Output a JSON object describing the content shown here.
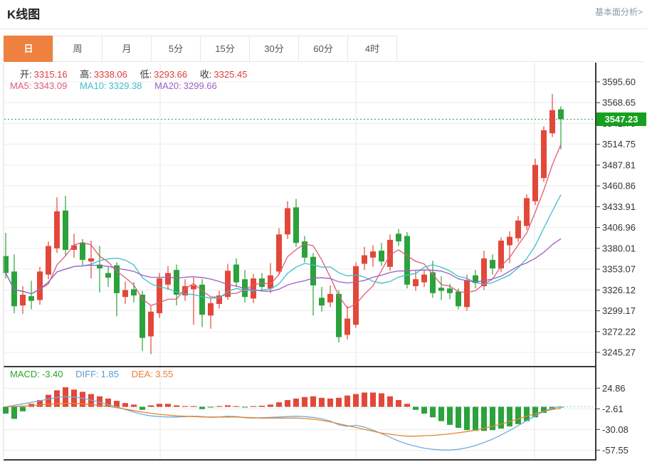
{
  "header": {
    "title": "K线图",
    "analysis_link": "基本面分析>"
  },
  "tabs": {
    "items": [
      {
        "label": "日",
        "active": true
      },
      {
        "label": "周",
        "active": false
      },
      {
        "label": "月",
        "active": false
      },
      {
        "label": "5分",
        "active": false
      },
      {
        "label": "15分",
        "active": false
      },
      {
        "label": "30分",
        "active": false
      },
      {
        "label": "60分",
        "active": false
      },
      {
        "label": "4时",
        "active": false
      }
    ],
    "active_bg": "#ee8040"
  },
  "indicators": {
    "ohlc": [
      {
        "label": "开:",
        "value": "3315.16"
      },
      {
        "label": "高:",
        "value": "3338.06"
      },
      {
        "label": "低:",
        "value": "3293.66"
      },
      {
        "label": "收:",
        "value": "3325.45"
      }
    ],
    "ma": [
      {
        "label": "MA5:",
        "value": "3343.09",
        "color": "#e05a78"
      },
      {
        "label": "MA10:",
        "value": "3329.38",
        "color": "#3bbfcc"
      },
      {
        "label": "MA20:",
        "value": "3299.66",
        "color": "#9c5fc0"
      }
    ],
    "macd": [
      {
        "label": "MACD:",
        "value": "-3.40",
        "color": "#2aa42c"
      },
      {
        "label": "DIFF:",
        "value": "1.85",
        "color": "#5b9bd5"
      },
      {
        "label": "DEA:",
        "value": "3.55",
        "color": "#e8823a"
      }
    ]
  },
  "price_label": {
    "text": "3547.23",
    "value": 3547.23,
    "bg": "#15a01f"
  },
  "colors": {
    "up": "#e2483a",
    "down": "#2ba23c",
    "ma5": "#e05a78",
    "ma10": "#3bbfcc",
    "ma20": "#9c5fc0",
    "diff": "#74aadc",
    "dea": "#e2862c",
    "grid": "#ececec",
    "vgrid": "#e6e6e6",
    "frame": "#3a3a3a",
    "left_border": "#d8d8d8",
    "tick_text": "#333333",
    "zero_dash": "#8fd0e0",
    "current_line": "#2aa53c",
    "value_red": "#e23b3b"
  },
  "chart_data": {
    "type": "candlestick",
    "title": "K线图",
    "legend": [
      "MA5",
      "MA10",
      "MA20",
      "MACD",
      "DIFF",
      "DEA"
    ],
    "price_ticks": [
      3595.6,
      3568.65,
      3541.7,
      3514.75,
      3487.81,
      3460.86,
      3433.91,
      3406.96,
      3380.01,
      3353.07,
      3326.12,
      3299.17,
      3272.22,
      3245.27
    ],
    "price_range": [
      3245.27,
      3595.6
    ],
    "current_price": 3547.23,
    "macd_ticks": [
      24.86,
      -2.61,
      -30.08,
      -57.55
    ],
    "time_gridlines_x": [
      225,
      500,
      751
    ],
    "candles": [
      [
        3370,
        3400,
        3341,
        3348
      ],
      [
        3350,
        3372,
        3296,
        3305
      ],
      [
        3306,
        3331,
        3295,
        3320
      ],
      [
        3318,
        3338,
        3301,
        3312
      ],
      [
        3313,
        3356,
        3307,
        3350
      ],
      [
        3346,
        3389,
        3340,
        3383
      ],
      [
        3380,
        3446,
        3374,
        3428
      ],
      [
        3429,
        3448,
        3371,
        3378
      ],
      [
        3378,
        3399,
        3368,
        3384
      ],
      [
        3387,
        3392,
        3358,
        3365
      ],
      [
        3363,
        3390,
        3341,
        3367
      ],
      [
        3359,
        3383,
        3323,
        3354
      ],
      [
        3348,
        3356,
        3330,
        3342
      ],
      [
        3358,
        3362,
        3292,
        3322
      ],
      [
        3317,
        3337,
        3308,
        3326
      ],
      [
        3327,
        3336,
        3310,
        3319
      ],
      [
        3320,
        3325,
        3247,
        3264
      ],
      [
        3266,
        3305,
        3243,
        3298
      ],
      [
        3296,
        3348,
        3290,
        3341
      ],
      [
        3333,
        3357,
        3326,
        3348
      ],
      [
        3352,
        3359,
        3306,
        3320
      ],
      [
        3319,
        3340,
        3312,
        3331
      ],
      [
        3327,
        3342,
        3281,
        3332
      ],
      [
        3333,
        3340,
        3278,
        3294
      ],
      [
        3293,
        3315,
        3276,
        3309
      ],
      [
        3308,
        3325,
        3302,
        3319
      ],
      [
        3317,
        3360,
        3313,
        3351
      ],
      [
        3359,
        3367,
        3330,
        3336
      ],
      [
        3340,
        3352,
        3310,
        3317
      ],
      [
        3315,
        3347,
        3309,
        3341
      ],
      [
        3341,
        3348,
        3324,
        3330
      ],
      [
        3328,
        3361,
        3322,
        3345
      ],
      [
        3350,
        3406,
        3346,
        3398
      ],
      [
        3398,
        3441,
        3392,
        3432
      ],
      [
        3433,
        3444,
        3382,
        3387
      ],
      [
        3389,
        3396,
        3362,
        3368
      ],
      [
        3369,
        3374,
        3293,
        3332
      ],
      [
        3316,
        3330,
        3298,
        3306
      ],
      [
        3310,
        3332,
        3304,
        3321
      ],
      [
        3321,
        3326,
        3258,
        3265
      ],
      [
        3268,
        3305,
        3262,
        3289
      ],
      [
        3281,
        3362,
        3277,
        3357
      ],
      [
        3360,
        3382,
        3352,
        3371
      ],
      [
        3368,
        3384,
        3356,
        3376
      ],
      [
        3377,
        3387,
        3357,
        3363
      ],
      [
        3356,
        3398,
        3351,
        3391
      ],
      [
        3399,
        3405,
        3383,
        3389
      ],
      [
        3396,
        3401,
        3328,
        3333
      ],
      [
        3331,
        3351,
        3325,
        3340
      ],
      [
        3336,
        3352,
        3330,
        3346
      ],
      [
        3349,
        3364,
        3316,
        3322
      ],
      [
        3329,
        3344,
        3313,
        3325
      ],
      [
        3328,
        3334,
        3314,
        3322
      ],
      [
        3324,
        3328,
        3301,
        3305
      ],
      [
        3304,
        3346,
        3299,
        3339
      ],
      [
        3345,
        3352,
        3328,
        3335
      ],
      [
        3331,
        3377,
        3326,
        3367
      ],
      [
        3365,
        3372,
        3346,
        3354
      ],
      [
        3354,
        3394,
        3349,
        3390
      ],
      [
        3384,
        3402,
        3361,
        3395
      ],
      [
        3393,
        3422,
        3388,
        3416
      ],
      [
        3409,
        3450,
        3404,
        3445
      ],
      [
        3441,
        3496,
        3436,
        3488
      ],
      [
        3471,
        3538,
        3466,
        3533
      ],
      [
        3529,
        3580,
        3524,
        3559
      ],
      [
        3560,
        3564,
        3508,
        3547.23
      ]
    ],
    "ma_periods": [
      5,
      10,
      20
    ],
    "macd": {
      "hist": [
        -9,
        -16,
        -6,
        4,
        9,
        16,
        22,
        26,
        23,
        20,
        17,
        14,
        11,
        8,
        5,
        3,
        -4,
        2,
        4,
        4,
        2,
        1,
        1,
        -3,
        -1,
        1,
        2,
        1,
        -0.5,
        1,
        1.5,
        3,
        6,
        9,
        11,
        13,
        14,
        12,
        11,
        12,
        15,
        17,
        19,
        19,
        18,
        14,
        9,
        4,
        -4,
        -9,
        -14,
        -19,
        -24,
        -28,
        -31,
        -32,
        -32,
        -31,
        -29,
        -26,
        -23,
        -19,
        -14,
        -8,
        -3,
        -1
      ],
      "diff": [
        0,
        2,
        4,
        6,
        8,
        10.5,
        12.5,
        13.5,
        13,
        11.5,
        9,
        6,
        3,
        0,
        -3.5,
        -7,
        -10,
        -12,
        -13,
        -13.5,
        -13.5,
        -13,
        -12.5,
        -13,
        -14,
        -13.5,
        -12.5,
        -13,
        -14.5,
        -15,
        -14.5,
        -14,
        -13.5,
        -13,
        -12.5,
        -13,
        -14,
        -16,
        -19,
        -24,
        -26,
        -24.5,
        -27,
        -31,
        -35.5,
        -40.5,
        -45.5,
        -49.5,
        -52.5,
        -55,
        -56.5,
        -57.5,
        -57.5,
        -56.5,
        -54.5,
        -51.5,
        -47.5,
        -43,
        -37.5,
        -31.5,
        -25,
        -18.5,
        -12,
        -6,
        -1.5,
        0.5
      ],
      "dea": [
        0,
        0.5,
        1,
        1.5,
        2.5,
        3.5,
        4,
        4.5,
        4.5,
        4,
        3,
        2,
        0.5,
        -1,
        -3,
        -5,
        -7,
        -8.5,
        -10,
        -11,
        -12,
        -12.5,
        -13,
        -13.5,
        -13.5,
        -13.5,
        -13.5,
        -13.5,
        -14,
        -14.5,
        -15,
        -15,
        -15,
        -15,
        -15,
        -15.5,
        -16.5,
        -18,
        -20,
        -22.5,
        -25,
        -27.5,
        -30,
        -32.5,
        -35,
        -36.5,
        -38,
        -39,
        -39,
        -38.5,
        -38,
        -37,
        -36,
        -34.5,
        -33,
        -31,
        -28.5,
        -26,
        -23,
        -19.5,
        -16,
        -12.5,
        -9,
        -6,
        -3.5,
        -2
      ]
    }
  }
}
